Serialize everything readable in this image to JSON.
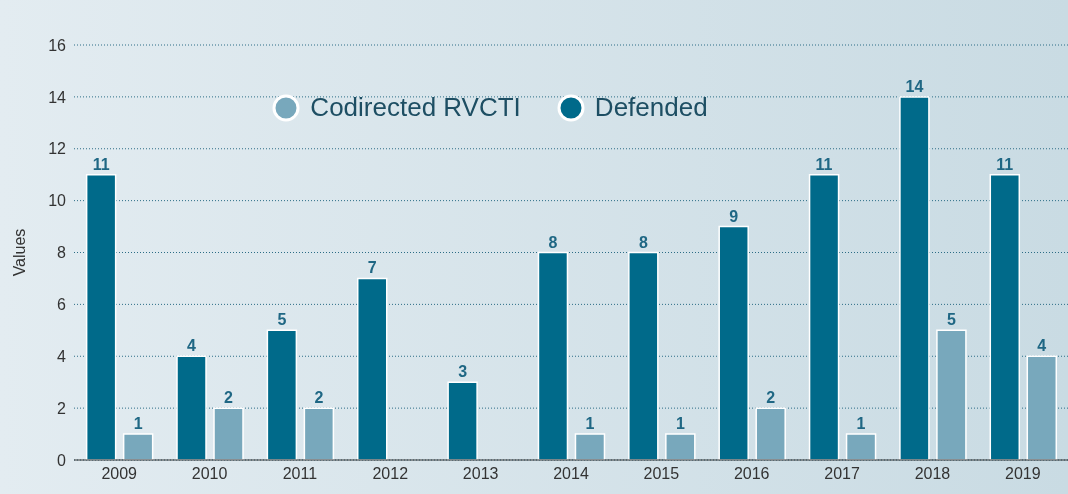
{
  "chart_data": {
    "type": "bar",
    "ylabel": "Values",
    "categories": [
      "2009",
      "2010",
      "2011",
      "2012",
      "2013",
      "2014",
      "2015",
      "2016",
      "2017",
      "2018",
      "2019"
    ],
    "series": [
      {
        "name": "Codirected  RVCTI",
        "color": "#78a8bc",
        "values": [
          1,
          2,
          2,
          null,
          null,
          1,
          1,
          2,
          1,
          5,
          4
        ]
      },
      {
        "name": "Defended",
        "color": "#006a8a",
        "values": [
          11,
          4,
          5,
          7,
          3,
          8,
          8,
          9,
          11,
          14,
          11
        ]
      }
    ],
    "ylim": [
      0,
      16
    ],
    "yticks": [
      0,
      2,
      4,
      6,
      8,
      10,
      12,
      14,
      16
    ],
    "grid": "y",
    "legend": "top",
    "data_labels": true
  }
}
